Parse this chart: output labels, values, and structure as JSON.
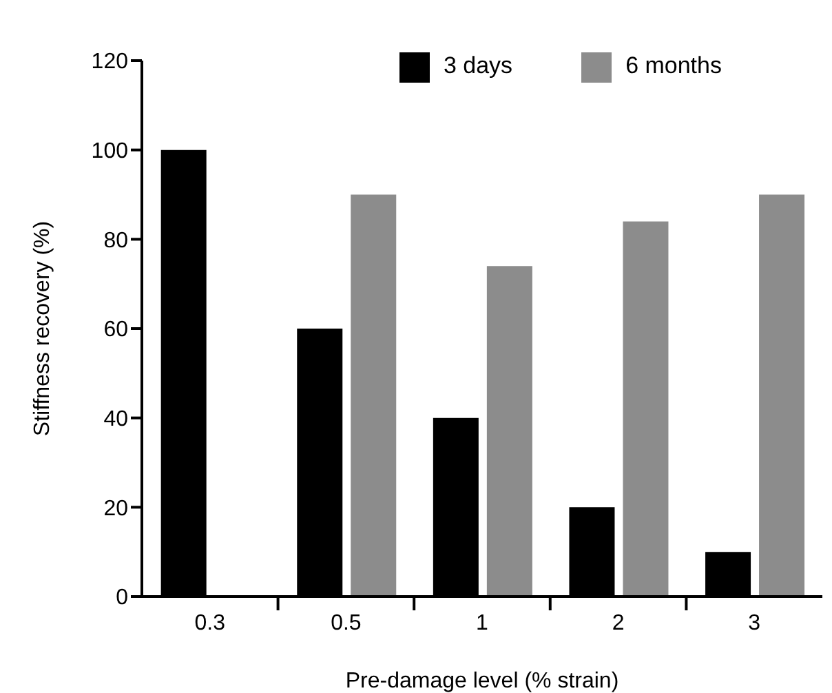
{
  "chart_data": {
    "type": "bar",
    "xlabel": "Pre-damage level (% strain)",
    "ylabel": "Stiffness recovery (%)",
    "categories": [
      "0.3",
      "0.5",
      "1",
      "2",
      "3"
    ],
    "series": [
      {
        "name": "3 days",
        "color": "#000000",
        "values": [
          100,
          60,
          40,
          20,
          10
        ]
      },
      {
        "name": "6 months",
        "color": "#8c8c8c",
        "values": [
          null,
          90,
          74,
          84,
          90
        ]
      }
    ],
    "ylim": [
      0,
      120
    ],
    "yticks": [
      0,
      20,
      40,
      60,
      80,
      100,
      120
    ],
    "grid": false,
    "legend": "top right"
  }
}
